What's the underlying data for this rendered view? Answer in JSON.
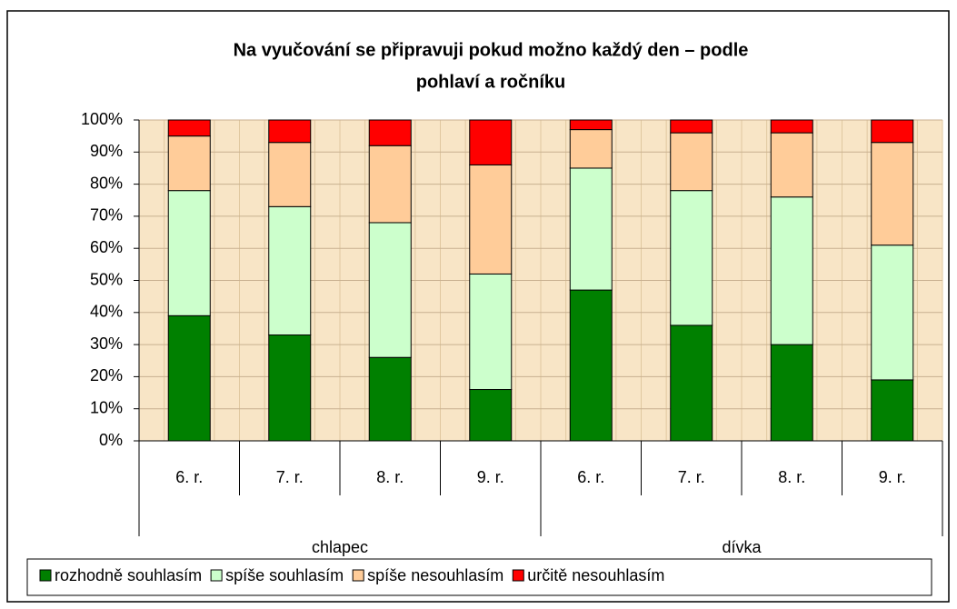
{
  "chart_data": {
    "type": "stacked_bar_100",
    "title": [
      "Na vyučování se připravuji pokud možno každý den – podle",
      "pohlaví a ročníku"
    ],
    "categories": [
      "6. r.",
      "7. r.",
      "8. r.",
      "9. r.",
      "6. r.",
      "7. r.",
      "8. r.",
      "9. r."
    ],
    "groups": [
      "chlapec",
      "dívka"
    ],
    "series": [
      {
        "name": "rozhodně souhlasím",
        "color": "#008000",
        "values": [
          39,
          33,
          26,
          16,
          47,
          36,
          30,
          19
        ]
      },
      {
        "name": "spíše souhlasím",
        "color": "#ccffcc",
        "values": [
          39,
          40,
          42,
          36,
          38,
          42,
          46,
          42
        ]
      },
      {
        "name": "spíše nesouhlasím",
        "color": "#ffcc99",
        "values": [
          17,
          20,
          24,
          34,
          12,
          18,
          20,
          32
        ]
      },
      {
        "name": "určitě nesouhlasím",
        "color": "#ff0000",
        "values": [
          5,
          7,
          8,
          14,
          3,
          4,
          4,
          7
        ]
      }
    ],
    "ylim": [
      0,
      100
    ],
    "yticks": [
      {
        "value": 0,
        "label": "0%"
      },
      {
        "value": 10,
        "label": "10%"
      },
      {
        "value": 20,
        "label": "20%"
      },
      {
        "value": 30,
        "label": "30%"
      },
      {
        "value": 40,
        "label": "40%"
      },
      {
        "value": 50,
        "label": "50%"
      },
      {
        "value": 60,
        "label": "60%"
      },
      {
        "value": 70,
        "label": "70%"
      },
      {
        "value": 80,
        "label": "80%"
      },
      {
        "value": 90,
        "label": "90%"
      },
      {
        "value": 100,
        "label": "100%"
      }
    ],
    "grid": true,
    "legend": "bottom"
  }
}
